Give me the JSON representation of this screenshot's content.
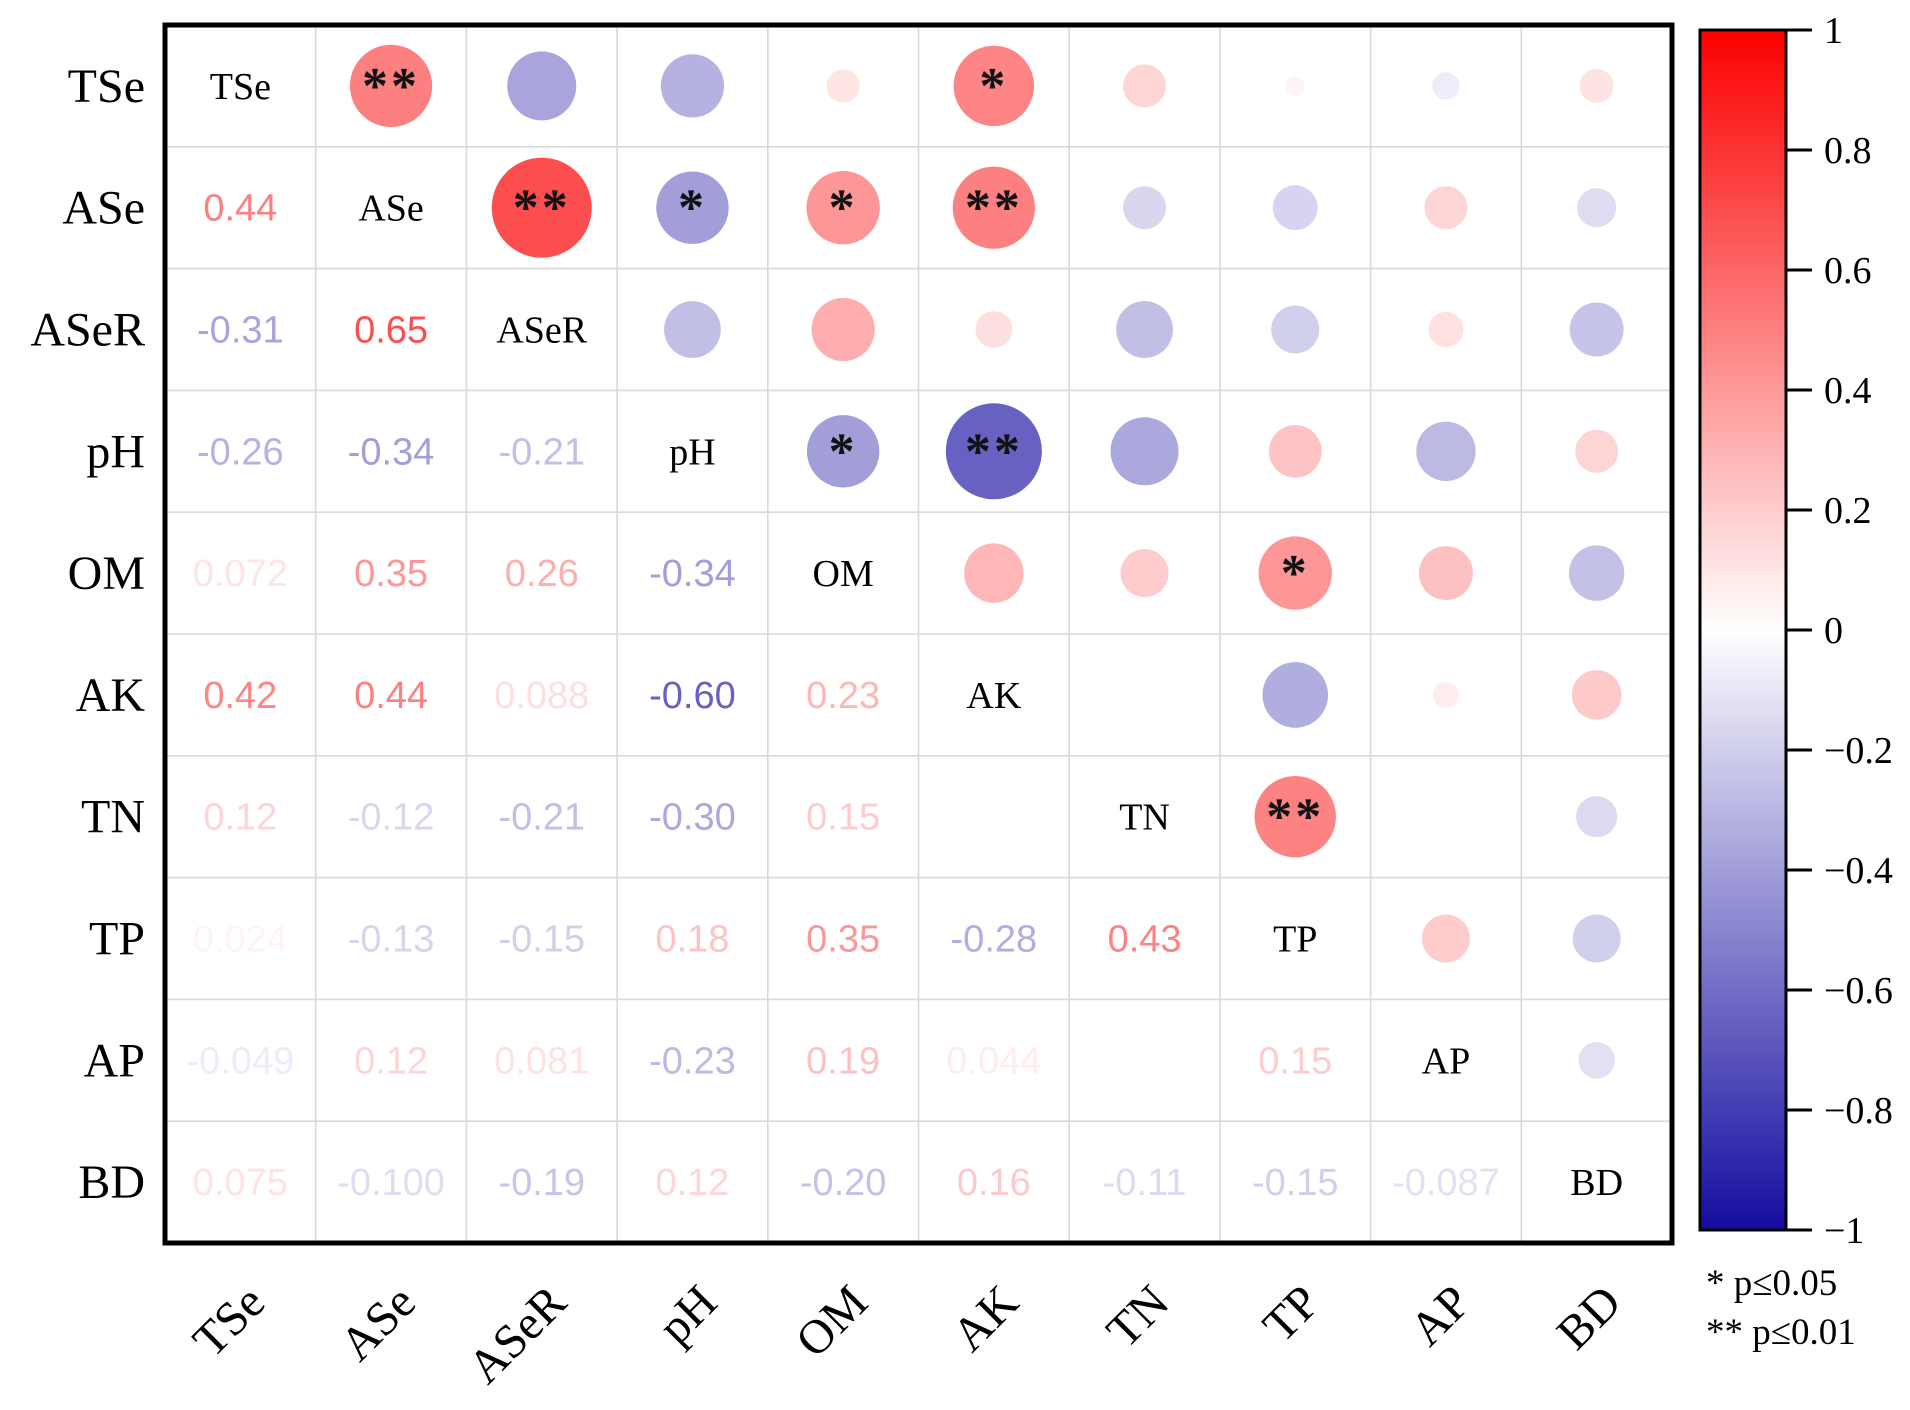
{
  "chart_data": {
    "type": "heatmap",
    "subtype": "correlation-matrix-bubble",
    "variables": [
      "TSe",
      "ASe",
      "ASeR",
      "pH",
      "OM",
      "AK",
      "TN",
      "TP",
      "AP",
      "BD"
    ],
    "layout_hint": {
      "lower_triangle": "correlation coefficient values (text colored by value)",
      "upper_triangle": "circles sized by |r| and colored by value, with significance stars",
      "diagonal": "variable names",
      "colorbar_position": "right",
      "value_range": [
        -1,
        1
      ]
    },
    "correlations": [
      {
        "a": "ASe",
        "b": "TSe",
        "value": 0.44,
        "label": "0.44",
        "significance": "**"
      },
      {
        "a": "ASeR",
        "b": "TSe",
        "value": -0.31,
        "label": "-0.31",
        "significance": ""
      },
      {
        "a": "ASeR",
        "b": "ASe",
        "value": 0.65,
        "label": "0.65",
        "significance": "**"
      },
      {
        "a": "pH",
        "b": "TSe",
        "value": -0.26,
        "label": "-0.26",
        "significance": ""
      },
      {
        "a": "pH",
        "b": "ASe",
        "value": -0.34,
        "label": "-0.34",
        "significance": "*"
      },
      {
        "a": "pH",
        "b": "ASeR",
        "value": -0.21,
        "label": "-0.21",
        "significance": ""
      },
      {
        "a": "OM",
        "b": "TSe",
        "value": 0.072,
        "label": "0.072",
        "significance": ""
      },
      {
        "a": "OM",
        "b": "ASe",
        "value": 0.35,
        "label": "0.35",
        "significance": "*"
      },
      {
        "a": "OM",
        "b": "ASeR",
        "value": 0.26,
        "label": "0.26",
        "significance": ""
      },
      {
        "a": "OM",
        "b": "pH",
        "value": -0.34,
        "label": "-0.34",
        "significance": "*"
      },
      {
        "a": "AK",
        "b": "TSe",
        "value": 0.42,
        "label": "0.42",
        "significance": "*"
      },
      {
        "a": "AK",
        "b": "ASe",
        "value": 0.44,
        "label": "0.44",
        "significance": "**"
      },
      {
        "a": "AK",
        "b": "ASeR",
        "value": 0.088,
        "label": "0.088",
        "significance": ""
      },
      {
        "a": "AK",
        "b": "pH",
        "value": -0.6,
        "label": "-0.60",
        "significance": "**"
      },
      {
        "a": "AK",
        "b": "OM",
        "value": 0.23,
        "label": "0.23",
        "significance": ""
      },
      {
        "a": "TN",
        "b": "TSe",
        "value": 0.12,
        "label": "0.12",
        "significance": ""
      },
      {
        "a": "TN",
        "b": "ASe",
        "value": -0.12,
        "label": "-0.12",
        "significance": ""
      },
      {
        "a": "TN",
        "b": "ASeR",
        "value": -0.21,
        "label": "-0.21",
        "significance": ""
      },
      {
        "a": "TN",
        "b": "pH",
        "value": -0.3,
        "label": "-0.30",
        "significance": ""
      },
      {
        "a": "TN",
        "b": "OM",
        "value": 0.15,
        "label": "0.15",
        "significance": ""
      },
      {
        "a": "TP",
        "b": "TSe",
        "value": 0.024,
        "label": "0.024",
        "significance": ""
      },
      {
        "a": "TP",
        "b": "ASe",
        "value": -0.13,
        "label": "-0.13",
        "significance": ""
      },
      {
        "a": "TP",
        "b": "ASeR",
        "value": -0.15,
        "label": "-0.15",
        "significance": ""
      },
      {
        "a": "TP",
        "b": "pH",
        "value": 0.18,
        "label": "0.18",
        "significance": ""
      },
      {
        "a": "TP",
        "b": "OM",
        "value": 0.35,
        "label": "0.35",
        "significance": "*"
      },
      {
        "a": "TP",
        "b": "AK",
        "value": -0.28,
        "label": "-0.28",
        "significance": ""
      },
      {
        "a": "TP",
        "b": "TN",
        "value": 0.43,
        "label": "0.43",
        "significance": "**"
      },
      {
        "a": "AP",
        "b": "TSe",
        "value": -0.049,
        "label": "-0.049",
        "significance": ""
      },
      {
        "a": "AP",
        "b": "ASe",
        "value": 0.12,
        "label": "0.12",
        "significance": ""
      },
      {
        "a": "AP",
        "b": "ASeR",
        "value": 0.081,
        "label": "0.081",
        "significance": ""
      },
      {
        "a": "AP",
        "b": "pH",
        "value": -0.23,
        "label": "-0.23",
        "significance": ""
      },
      {
        "a": "AP",
        "b": "OM",
        "value": 0.19,
        "label": "0.19",
        "significance": ""
      },
      {
        "a": "AP",
        "b": "AK",
        "value": 0.044,
        "label": "0.044",
        "significance": ""
      },
      {
        "a": "AP",
        "b": "TP",
        "value": 0.15,
        "label": "0.15",
        "significance": ""
      },
      {
        "a": "BD",
        "b": "TSe",
        "value": 0.075,
        "label": "0.075",
        "significance": ""
      },
      {
        "a": "BD",
        "b": "ASe",
        "value": -0.1,
        "label": "-0.100",
        "significance": ""
      },
      {
        "a": "BD",
        "b": "ASeR",
        "value": -0.19,
        "label": "-0.19",
        "significance": ""
      },
      {
        "a": "BD",
        "b": "pH",
        "value": 0.12,
        "label": "0.12",
        "significance": ""
      },
      {
        "a": "BD",
        "b": "OM",
        "value": -0.2,
        "label": "-0.20",
        "significance": ""
      },
      {
        "a": "BD",
        "b": "AK",
        "value": 0.16,
        "label": "0.16",
        "significance": ""
      },
      {
        "a": "BD",
        "b": "TN",
        "value": -0.11,
        "label": "-0.11",
        "significance": ""
      },
      {
        "a": "BD",
        "b": "TP",
        "value": -0.15,
        "label": "-0.15",
        "significance": ""
      },
      {
        "a": "BD",
        "b": "AP",
        "value": -0.087,
        "label": "-0.087",
        "significance": ""
      }
    ],
    "blank_pairs": [
      [
        "AK",
        "TN"
      ],
      [
        "TN",
        "AP"
      ]
    ],
    "colorbar": {
      "ticks": [
        "1",
        "0.8",
        "0.6",
        "0.4",
        "0.2",
        "0",
        "−0.2",
        "−0.4",
        "−0.6",
        "−0.8",
        "−1"
      ],
      "positive_color": "#fb0000",
      "negative_color": "#150ca0",
      "zero_color": "#ffffff"
    },
    "significance_legend": [
      "* p≤0.05",
      "** p≤0.01"
    ],
    "grid": "on",
    "grid_color": "#d9d9d9",
    "border_color": "#000000"
  }
}
